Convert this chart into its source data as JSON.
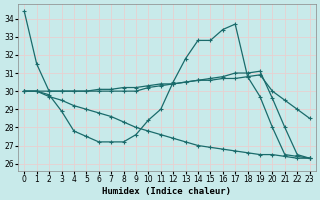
{
  "xlabel": "Humidex (Indice chaleur)",
  "bg_color": "#c8eaea",
  "grid_color": "#d4ecec",
  "line_color": "#1a6b6b",
  "xlim": [
    -0.5,
    23.5
  ],
  "ylim": [
    25.6,
    34.8
  ],
  "yticks": [
    26,
    27,
    28,
    29,
    30,
    31,
    32,
    33,
    34
  ],
  "xticks": [
    0,
    1,
    2,
    3,
    4,
    5,
    6,
    7,
    8,
    9,
    10,
    11,
    12,
    13,
    14,
    15,
    16,
    17,
    18,
    19,
    20,
    21,
    22,
    23
  ],
  "line1_x": [
    0,
    1,
    2,
    3,
    4,
    5,
    6,
    7,
    8,
    9,
    10,
    11,
    12,
    13,
    14,
    15,
    16,
    17,
    18,
    19,
    20,
    21,
    22,
    23
  ],
  "line1_y": [
    34.4,
    31.5,
    30.0,
    30.0,
    30.0,
    30.0,
    30.0,
    30.0,
    30.0,
    30.0,
    30.2,
    30.3,
    30.4,
    30.5,
    30.6,
    30.7,
    30.8,
    31.0,
    31.0,
    31.1,
    29.6,
    28.0,
    26.5,
    26.3
  ],
  "line2_x": [
    0,
    1,
    2,
    3,
    4,
    5,
    6,
    7,
    8,
    9,
    10,
    11,
    12,
    13,
    14,
    15,
    16,
    17,
    18,
    19,
    20,
    21,
    22,
    23
  ],
  "line2_y": [
    30.0,
    30.0,
    29.8,
    28.9,
    27.8,
    27.5,
    27.2,
    27.2,
    27.2,
    27.6,
    28.4,
    29.0,
    30.5,
    31.8,
    32.8,
    32.8,
    33.4,
    33.7,
    30.8,
    29.7,
    28.0,
    26.5,
    26.4,
    26.3
  ],
  "line3_x": [
    0,
    1,
    2,
    3,
    4,
    5,
    6,
    7,
    8,
    9,
    10,
    11,
    12,
    13,
    14,
    15,
    16,
    17,
    18,
    19,
    20,
    21,
    22,
    23
  ],
  "line3_y": [
    30.0,
    30.0,
    30.0,
    30.0,
    30.0,
    30.0,
    30.1,
    30.1,
    30.2,
    30.2,
    30.3,
    30.4,
    30.4,
    30.5,
    30.6,
    30.6,
    30.7,
    30.7,
    30.8,
    30.9,
    30.0,
    29.5,
    29.0,
    28.5
  ],
  "line4_x": [
    0,
    1,
    2,
    3,
    4,
    5,
    6,
    7,
    8,
    9,
    10,
    11,
    12,
    13,
    14,
    15,
    16,
    17,
    18,
    19,
    20,
    21,
    22,
    23
  ],
  "line4_y": [
    30.0,
    30.0,
    29.7,
    29.5,
    29.2,
    29.0,
    28.8,
    28.6,
    28.3,
    28.0,
    27.8,
    27.6,
    27.4,
    27.2,
    27.0,
    26.9,
    26.8,
    26.7,
    26.6,
    26.5,
    26.5,
    26.4,
    26.3,
    26.3
  ]
}
